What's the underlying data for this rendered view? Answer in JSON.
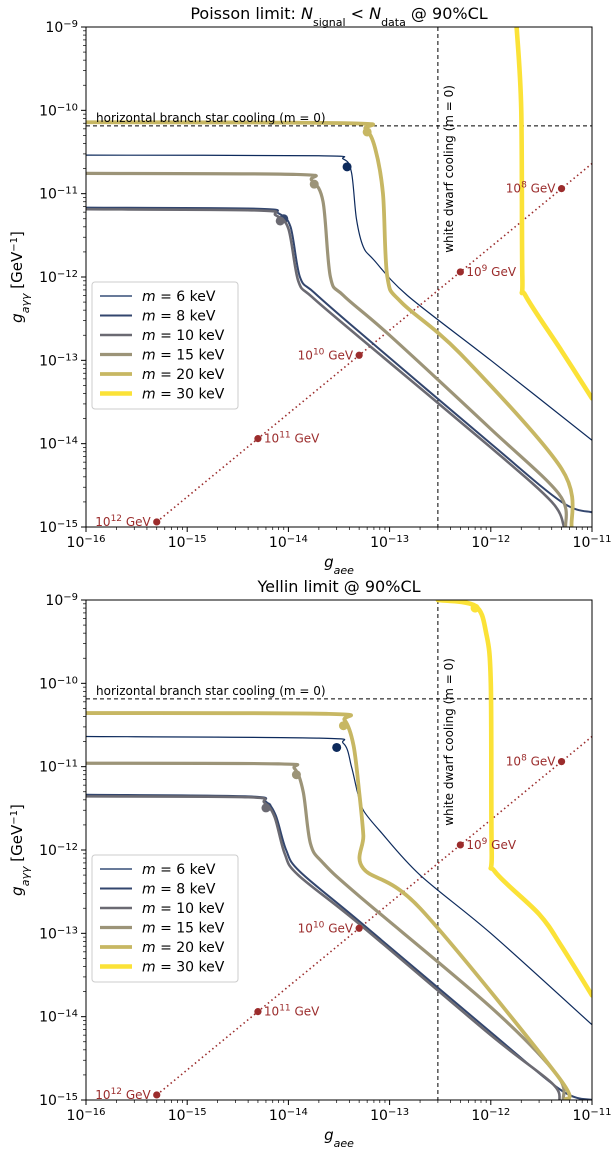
{
  "chart_data": [
    {
      "type": "line",
      "title_parts": [
        "Poisson limit: ",
        "N",
        "signal",
        " < ",
        "N",
        "data",
        " @ 90%CL"
      ],
      "xlabel_main": "g",
      "xlabel_sub": "aee",
      "ylabel_main": "g",
      "ylabel_sub": "aγγ",
      "ylabel_unit_pre": " [GeV",
      "ylabel_unit_sup": "−1",
      "ylabel_unit_post": "]",
      "x_scale": "log",
      "y_scale": "log",
      "xlim": [
        1e-16,
        1e-11
      ],
      "ylim": [
        1e-15,
        1e-09
      ],
      "x_ticks": [
        {
          "m": "10",
          "e": "−16"
        },
        {
          "m": "10",
          "e": "−15"
        },
        {
          "m": "10",
          "e": "−14"
        },
        {
          "m": "10",
          "e": "−13"
        },
        {
          "m": "10",
          "e": "−12"
        },
        {
          "m": "10",
          "e": "−11"
        }
      ],
      "y_ticks": [
        {
          "m": "10",
          "e": "−15"
        },
        {
          "m": "10",
          "e": "−14"
        },
        {
          "m": "10",
          "e": "−13"
        },
        {
          "m": "10",
          "e": "−12"
        },
        {
          "m": "10",
          "e": "−11"
        },
        {
          "m": "10",
          "e": "−10"
        },
        {
          "m": "10",
          "e": "−9"
        }
      ],
      "hline": {
        "y": 6.5e-11,
        "label": "horizontal branch star cooling (m = 0)"
      },
      "vline": {
        "x": 3e-13,
        "label": "white dwarf cooling (m = 0)"
      },
      "legend_position": "center-left",
      "series": [
        {
          "name": "m = 6 keV",
          "color": "#0d2a5c",
          "width": 1.2,
          "marker": [
            3.8e-14,
            2.1e-11
          ],
          "points": [
            [
              1e-16,
              2.9e-11
            ],
            [
              2e-14,
              2.85e-11
            ],
            [
              3.5e-14,
              2.6e-11
            ],
            [
              4.2e-14,
              1.8e-11
            ],
            [
              4.7e-14,
              5e-12
            ],
            [
              5.5e-14,
              2.3e-12
            ],
            [
              7e-14,
              1.6e-12
            ],
            [
              1.5e-13,
              6e-13
            ],
            [
              1e-12,
              1e-13
            ],
            [
              1e-11,
              1.1e-14
            ]
          ]
        },
        {
          "name": "m = 8 keV",
          "color": "#33466e",
          "width": 2,
          "marker": [
            9e-15,
            5e-12
          ],
          "points": [
            [
              1e-16,
              6.8e-12
            ],
            [
              5e-15,
              6.6e-12
            ],
            [
              8e-15,
              5.8e-12
            ],
            [
              1.05e-14,
              4e-12
            ],
            [
              1.3e-14,
              1e-12
            ],
            [
              1.8e-14,
              6.5e-13
            ],
            [
              5e-14,
              2.2e-13
            ],
            [
              1e-12,
              1e-14
            ],
            [
              5e-12,
              2e-15
            ],
            [
              1e-11,
              1.5e-15
            ]
          ]
        },
        {
          "name": "m = 10 keV",
          "color": "#6b6a72",
          "width": 2.6,
          "marker": [
            8.3e-15,
            4.7e-12
          ],
          "points": [
            [
              1e-16,
              6.5e-12
            ],
            [
              5e-15,
              6.3e-12
            ],
            [
              7.5e-15,
              5.5e-12
            ],
            [
              1e-14,
              3.8e-12
            ],
            [
              1.25e-14,
              9e-13
            ],
            [
              1.7e-14,
              5.8e-13
            ],
            [
              5e-14,
              1.9e-13
            ],
            [
              1e-12,
              9e-15
            ],
            [
              4e-12,
              2e-15
            ],
            [
              5.3e-12,
              1e-15
            ]
          ]
        },
        {
          "name": "m = 15 keV",
          "color": "#9c9478",
          "width": 3.2,
          "marker": [
            1.8e-14,
            1.3e-11
          ],
          "points": [
            [
              1e-16,
              1.75e-11
            ],
            [
              1.2e-14,
              1.7e-11
            ],
            [
              1.7e-14,
              1.45e-11
            ],
            [
              2.2e-14,
              8e-12
            ],
            [
              2.6e-14,
              1e-12
            ],
            [
              3.5e-14,
              6e-13
            ],
            [
              1e-13,
              2e-13
            ],
            [
              1e-12,
              1.5e-14
            ],
            [
              4.7e-12,
              2.5e-15
            ],
            [
              5.5e-12,
              1e-15
            ]
          ]
        },
        {
          "name": "m = 20 keV",
          "color": "#c7b763",
          "width": 3.8,
          "marker": [
            6e-14,
            5.5e-11
          ],
          "points": [
            [
              1e-16,
              7.2e-11
            ],
            [
              4e-14,
              7e-11
            ],
            [
              5.8e-14,
              6e-11
            ],
            [
              7.2e-14,
              3.5e-11
            ],
            [
              8.6e-14,
              1e-11
            ],
            [
              9.5e-14,
              1e-12
            ],
            [
              1.3e-13,
              5e-13
            ],
            [
              5e-13,
              1.2e-13
            ],
            [
              5e-12,
              5e-15
            ],
            [
              6.3e-12,
              1e-15
            ]
          ]
        },
        {
          "name": "m = 30 keV",
          "color": "#fbe237",
          "width": 4.6,
          "marker": null,
          "points": [
            [
              1.8e-12,
              1e-09
            ],
            [
              2e-12,
              1e-10
            ],
            [
              2.05e-12,
              1e-12
            ],
            [
              2.2e-12,
              6e-13
            ],
            [
              5e-12,
              1.3e-13
            ],
            [
              1e-11,
              3.5e-14
            ]
          ]
        }
      ],
      "scale_line": {
        "color": "#9b2c2c",
        "points": [
          [
            5e-16,
            1.15e-15
          ],
          [
            1e-11,
            2.3e-11
          ]
        ]
      },
      "scale_points": [
        {
          "x": 5e-16,
          "y": 1.15e-15,
          "m": "10",
          "e": "12",
          "unit": " GeV",
          "side": "left"
        },
        {
          "x": 5e-15,
          "y": 1.15e-14,
          "m": "10",
          "e": "11",
          "unit": " GeV",
          "side": "right"
        },
        {
          "x": 5e-14,
          "y": 1.15e-13,
          "m": "10",
          "e": "10",
          "unit": " GeV",
          "side": "left"
        },
        {
          "x": 5e-13,
          "y": 1.15e-12,
          "m": "10",
          "e": "9",
          "unit": " GeV",
          "side": "right"
        },
        {
          "x": 5e-12,
          "y": 1.15e-11,
          "m": "10",
          "e": "8",
          "unit": " GeV",
          "side": "left"
        }
      ]
    },
    {
      "type": "line",
      "title_parts": [
        "Yellin limit @ 90%CL"
      ],
      "xlabel_main": "g",
      "xlabel_sub": "aee",
      "ylabel_main": "g",
      "ylabel_sub": "aγγ",
      "ylabel_unit_pre": " [GeV",
      "ylabel_unit_sup": "−1",
      "ylabel_unit_post": "]",
      "x_scale": "log",
      "y_scale": "log",
      "xlim": [
        1e-16,
        1e-11
      ],
      "ylim": [
        1e-15,
        1e-09
      ],
      "x_ticks": [
        {
          "m": "10",
          "e": "−16"
        },
        {
          "m": "10",
          "e": "−15"
        },
        {
          "m": "10",
          "e": "−14"
        },
        {
          "m": "10",
          "e": "−13"
        },
        {
          "m": "10",
          "e": "−12"
        },
        {
          "m": "10",
          "e": "−11"
        }
      ],
      "y_ticks": [
        {
          "m": "10",
          "e": "−15"
        },
        {
          "m": "10",
          "e": "−14"
        },
        {
          "m": "10",
          "e": "−13"
        },
        {
          "m": "10",
          "e": "−12"
        },
        {
          "m": "10",
          "e": "−11"
        },
        {
          "m": "10",
          "e": "−10"
        },
        {
          "m": "10",
          "e": "−9"
        }
      ],
      "hline": {
        "y": 6.5e-11,
        "label": "horizontal branch star cooling (m = 0)"
      },
      "vline": {
        "x": 3e-13,
        "label": "white dwarf cooling (m = 0)"
      },
      "legend_position": "center-left",
      "series": [
        {
          "name": "m = 6 keV",
          "color": "#0d2a5c",
          "width": 1.2,
          "marker": [
            3e-14,
            1.7e-11
          ],
          "points": [
            [
              1e-16,
              2.3e-11
            ],
            [
              2e-14,
              2.2e-11
            ],
            [
              3.5e-14,
              1.9e-11
            ],
            [
              4.2e-14,
              1e-11
            ],
            [
              4.8e-14,
              5e-12
            ],
            [
              5.5e-14,
              3e-12
            ],
            [
              8e-14,
              1.7e-12
            ],
            [
              2e-13,
              5e-13
            ],
            [
              1e-12,
              1e-13
            ],
            [
              1e-11,
              8e-15
            ]
          ]
        },
        {
          "name": "m = 8 keV",
          "color": "#33466e",
          "width": 2,
          "marker": [
            6.2e-15,
            3.3e-12
          ],
          "points": [
            [
              1e-16,
              4.6e-12
            ],
            [
              4e-15,
              4.4e-12
            ],
            [
              6e-15,
              3.8e-12
            ],
            [
              7.5e-15,
              2.6e-12
            ],
            [
              9.5e-15,
              1e-12
            ],
            [
              1.3e-14,
              5.5e-13
            ],
            [
              5e-14,
              1.4e-13
            ],
            [
              1e-12,
              6.5e-15
            ],
            [
              5e-12,
              1.3e-15
            ],
            [
              1e-11,
              1e-15
            ]
          ]
        },
        {
          "name": "m = 10 keV",
          "color": "#6b6a72",
          "width": 2.6,
          "marker": [
            6e-15,
            3.2e-12
          ],
          "points": [
            [
              1e-16,
              4.4e-12
            ],
            [
              4e-15,
              4.3e-12
            ],
            [
              5.8e-15,
              3.7e-12
            ],
            [
              7.3e-15,
              2.5e-12
            ],
            [
              9.2e-15,
              9e-13
            ],
            [
              1.25e-14,
              5e-13
            ],
            [
              5e-14,
              1.3e-13
            ],
            [
              1e-12,
              6e-15
            ],
            [
              4e-12,
              1.6e-15
            ],
            [
              4.8e-12,
              1e-15
            ]
          ]
        },
        {
          "name": "m = 15 keV",
          "color": "#9c9478",
          "width": 3.2,
          "marker": [
            1.2e-14,
            8e-12
          ],
          "points": [
            [
              1e-16,
              1.1e-11
            ],
            [
              8e-15,
              1.08e-11
            ],
            [
              1.15e-14,
              9.5e-12
            ],
            [
              1.4e-14,
              5e-12
            ],
            [
              1.65e-14,
              1.2e-12
            ],
            [
              2.2e-14,
              7e-13
            ],
            [
              5e-14,
              2.8e-13
            ],
            [
              1e-12,
              1.3e-14
            ],
            [
              4.5e-12,
              2e-15
            ],
            [
              5.2e-12,
              1e-15
            ]
          ]
        },
        {
          "name": "m = 20 keV",
          "color": "#c7b763",
          "width": 3.8,
          "marker": [
            3.5e-14,
            3.1e-11
          ],
          "points": [
            [
              1e-16,
              4.4e-11
            ],
            [
              2.5e-14,
              4.3e-11
            ],
            [
              3.6e-14,
              3.6e-11
            ],
            [
              4.4e-14,
              1.8e-11
            ],
            [
              5e-14,
              5e-12
            ],
            [
              5.5e-14,
              1.5e-12
            ],
            [
              5.5e-14,
              6e-13
            ],
            [
              2e-13,
              2e-13
            ],
            [
              4.5e-12,
              2e-15
            ],
            [
              5.5e-12,
              1e-15
            ]
          ]
        },
        {
          "name": "m = 30 keV",
          "color": "#fbe237",
          "width": 4.6,
          "marker": [
            7e-13,
            8e-10
          ],
          "points": [
            [
              3e-13,
              1e-09
            ],
            [
              7e-13,
              8.5e-10
            ],
            [
              9e-13,
              4e-10
            ],
            [
              1e-12,
              1e-10
            ],
            [
              1.02e-12,
              1e-12
            ],
            [
              1.1e-12,
              5.5e-13
            ],
            [
              3e-12,
              1.7e-13
            ],
            [
              5e-12,
              7e-14
            ],
            [
              1e-11,
              1.8e-14
            ]
          ]
        }
      ],
      "scale_line": {
        "color": "#9b2c2c",
        "points": [
          [
            5e-16,
            1.15e-15
          ],
          [
            1e-11,
            2.3e-11
          ]
        ]
      },
      "scale_points": [
        {
          "x": 5e-16,
          "y": 1.15e-15,
          "m": "10",
          "e": "12",
          "unit": " GeV",
          "side": "left"
        },
        {
          "x": 5e-15,
          "y": 1.15e-14,
          "m": "10",
          "e": "11",
          "unit": " GeV",
          "side": "right"
        },
        {
          "x": 5e-14,
          "y": 1.15e-13,
          "m": "10",
          "e": "10",
          "unit": " GeV",
          "side": "left"
        },
        {
          "x": 5e-13,
          "y": 1.15e-12,
          "m": "10",
          "e": "9",
          "unit": " GeV",
          "side": "right"
        },
        {
          "x": 5e-12,
          "y": 1.15e-11,
          "m": "10",
          "e": "8",
          "unit": " GeV",
          "side": "left"
        }
      ]
    }
  ]
}
